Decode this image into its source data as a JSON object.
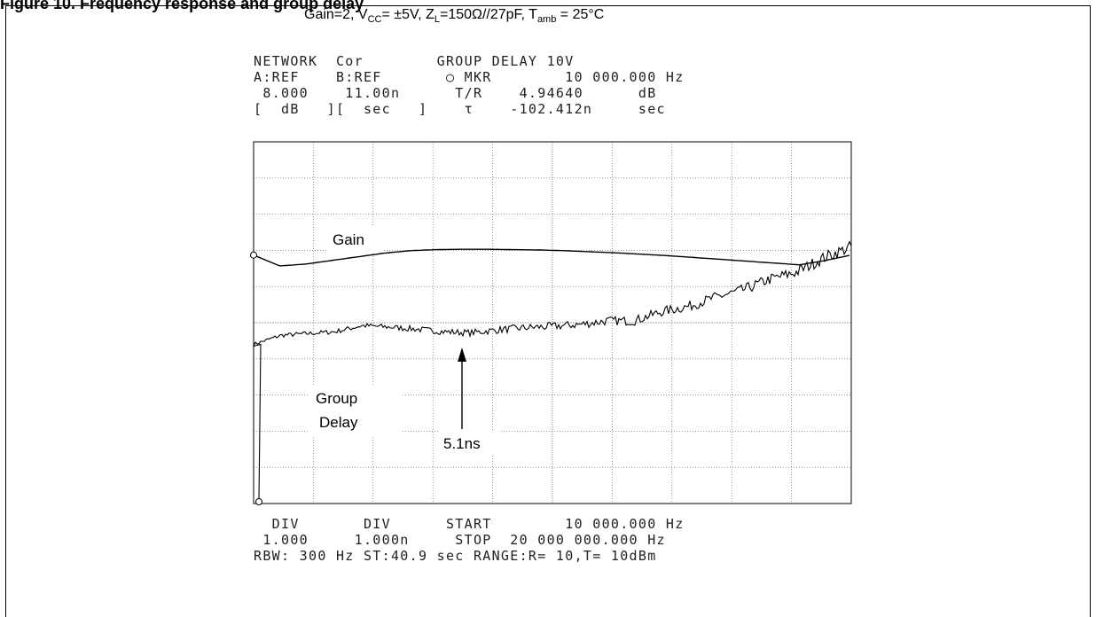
{
  "heading": "Figure 10. Frequency response and group delay",
  "conditions": {
    "gain": "Gain=2, V",
    "vcc_sub": "CC",
    "vcc_val": "= ±5V, Z",
    "zl_sub": "L",
    "zl_val": "=150Ω//27pF, T",
    "tamb_sub": "amb",
    "tamb_val": " = 25°C"
  },
  "header_lines": [
    "NETWORK  Cor        GROUP DELAY 10V",
    "A:REF    B:REF       ○ MKR        10 000.000 Hz",
    " 8.000    11.00n      T/R    4.94640      dB",
    "[  dB   ][  sec   ]    τ    -102.412n     sec"
  ],
  "footer_lines": [
    "  DIV       DIV      START        10 000.000 Hz",
    " 1.000     1.000n     STOP  20 000 000.000 Hz",
    "RBW: 300 Hz ST:40.9 sec RANGE:R= 10,T= 10dBm"
  ],
  "chart_data": {
    "type": "line",
    "x_start_hz": 10000,
    "x_stop_hz": 20000000,
    "grid": true,
    "divisions": {
      "x": 10,
      "y": 10
    },
    "series": [
      {
        "name": "Gain",
        "unit": "dB",
        "scale_per_div": 1.0,
        "reference": 8.0,
        "values": [
          8.0,
          7.7,
          7.75,
          7.85,
          7.95,
          8.05,
          8.12,
          8.15,
          8.16,
          8.16,
          8.15,
          8.14,
          8.12,
          8.09,
          8.06,
          8.02,
          7.98,
          7.93,
          7.88,
          7.83,
          7.78,
          7.73,
          7.85,
          8.0
        ]
      },
      {
        "name": "Group Delay",
        "unit": "ns",
        "scale_per_div": 1.0,
        "reference": 11.0,
        "values": [
          0.1,
          4.4,
          4.65,
          4.7,
          4.75,
          4.92,
          4.88,
          4.82,
          4.75,
          4.72,
          4.8,
          4.86,
          4.9,
          4.95,
          5.05,
          5.05,
          5.3,
          5.45,
          5.7,
          5.9,
          6.2,
          6.4,
          6.8,
          7.1
        ]
      }
    ],
    "annotations": {
      "gain": "Gain",
      "group1": "Group",
      "group2": "Delay",
      "delay_value": "5.1ns"
    }
  }
}
